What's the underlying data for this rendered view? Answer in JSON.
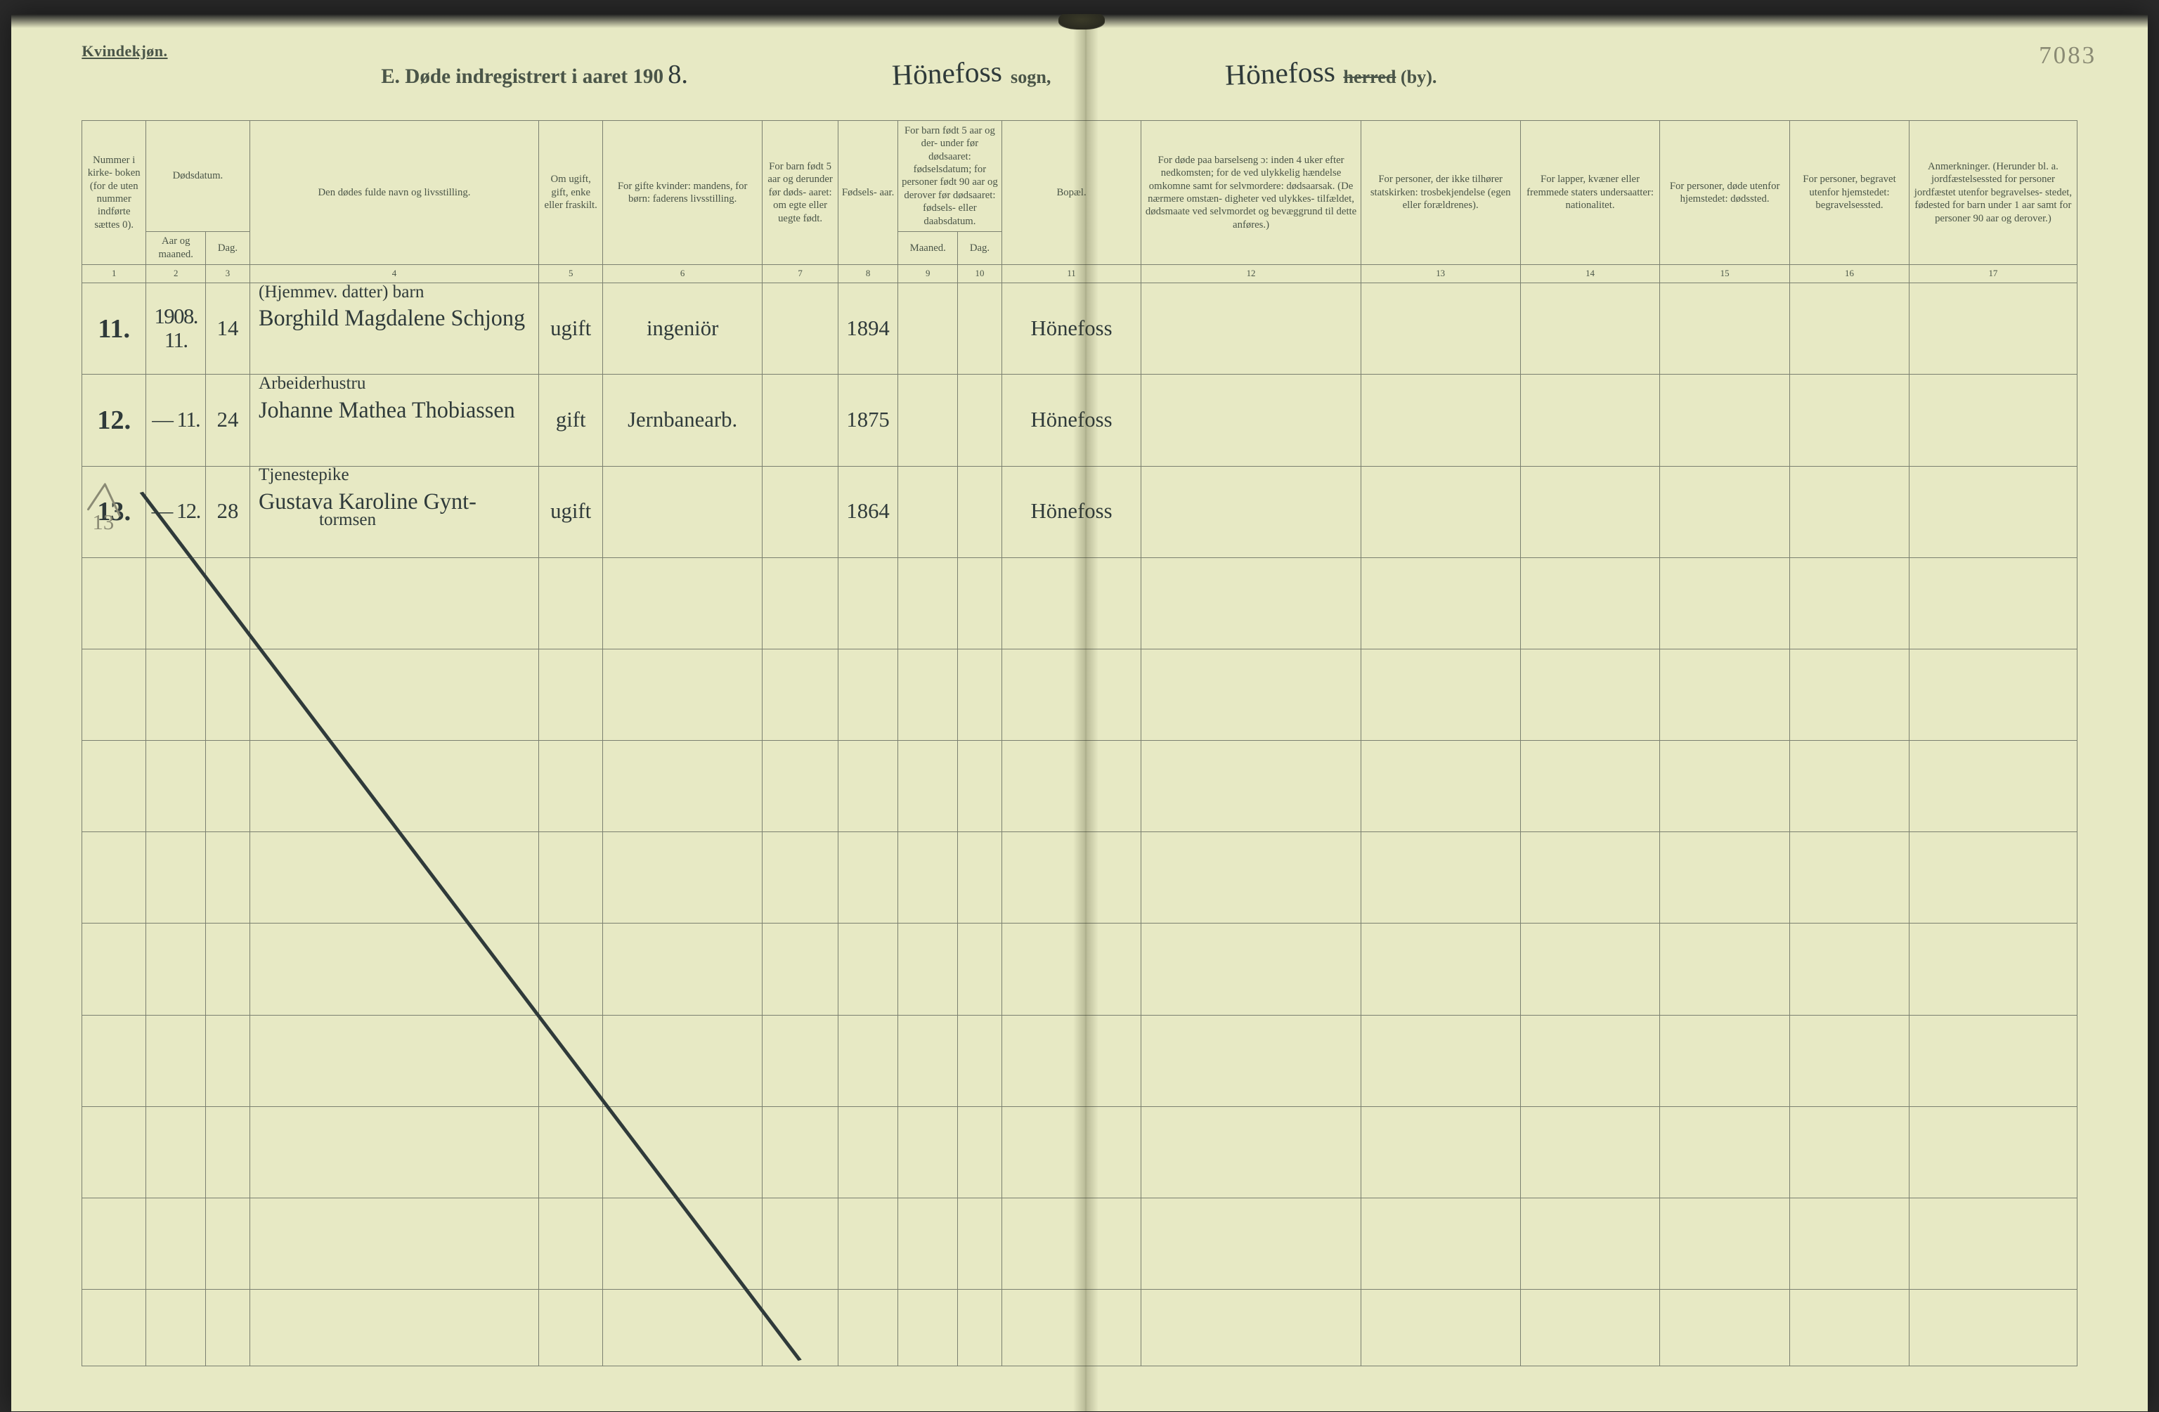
{
  "colors": {
    "paper": "#e7e9c4",
    "print": "#4a5548",
    "rule": "#7b8070",
    "ink": "#2f3a3a",
    "pencil": "#8a8a74"
  },
  "corner_label": "Kvindekjøn.",
  "page_number": "7083",
  "title": {
    "prefix": "E.  Døde indregistrert i aaret 190",
    "year_digit": "8.",
    "sogn_hand": "Hönefoss",
    "sogn_print": "sogn,",
    "herred_hand": "Hönefoss",
    "herred_strike": "herred",
    "herred_suffix": " (by)."
  },
  "headers": {
    "c1": "Nummer i kirke- boken (for de uten nummer indførte sættes 0).",
    "c2a": "Dødsdatum.",
    "c2b": "Aar og maaned.",
    "c3": "Dag.",
    "c4": "Den dødes fulde navn og livsstilling.",
    "c5": "Om ugift, gift, enke eller fraskilt.",
    "c6": "For gifte kvinder: mandens, for børn: faderens livsstilling.",
    "c7": "For barn født 5 aar og derunder før døds- aaret: om egte eller uegte født.",
    "c8": "Fødsels- aar.",
    "c9a": "For barn født 5 aar og der- under før dødsaaret: fødselsdatum; for personer født 90 aar og derover før dødsaaret: fødsels- eller daabsdatum.",
    "c9b": "Maaned.",
    "c10": "Dag.",
    "c11": "Bopæl.",
    "c12": "For døde paa barselseng ɔ: inden 4 uker efter nedkomsten; for de ved ulykkelig hændelse omkomne samt for selvmordere: dødsaarsak. (De nærmere omstæn- digheter ved ulykkes- tilfældet, dødsmaate ved selvmordet og bevæggrund til dette anføres.)",
    "c13": "For personer, der ikke tilhører statskirken: trosbekjendelse (egen eller forældrenes).",
    "c14": "For lapper, kvæner eller fremmede staters undersaatter: nationalitet.",
    "c15": "For personer, døde utenfor hjemstedet: dødssted.",
    "c16": "For personer, begravet utenfor hjemstedet: begravelsessted.",
    "c17": "Anmerkninger. (Herunder bl. a. jordfæstelsessted for personer jordfæstet utenfor begravelses- stedet, fødested for barn under 1 aar samt for personer 90 aar og derover.)"
  },
  "colnums": [
    "1",
    "2",
    "3",
    "4",
    "5",
    "6",
    "7",
    "8",
    "9",
    "10",
    "11",
    "12",
    "13",
    "14",
    "15",
    "16",
    "17"
  ],
  "colwidths_pct": [
    3.2,
    3.0,
    2.2,
    14.5,
    3.2,
    8.0,
    3.8,
    3.0,
    3.0,
    2.2,
    7.0,
    11.0,
    8.0,
    7.0,
    6.5,
    6.0,
    8.4
  ],
  "rows": [
    {
      "num": "11.",
      "aar_mnd": "1908. 11.",
      "dag": "14",
      "occ_above": "(Hjemmev. datter)  barn",
      "name": "Borghild Magdalene Schjong",
      "name_below": "",
      "status": "ugift",
      "far": "ingeniör",
      "fodselsaar": "1894",
      "bopael": "Hönefoss"
    },
    {
      "num": "12.",
      "aar_mnd": "— 11.",
      "dag": "24",
      "occ_above": "Arbeiderhustru",
      "name": "Johanne Mathea Thobiassen",
      "name_below": "",
      "status": "gift",
      "far": "Jernbanearb.",
      "fodselsaar": "1875",
      "bopael": "Hönefoss"
    },
    {
      "num": "13.",
      "aar_mnd": "— 12.",
      "dag": "28",
      "occ_above": "Tjenestepike",
      "name": "Gustava Karoline Gynt-",
      "name_below": "tormsen",
      "status": "ugift",
      "far": "",
      "fodselsaar": "1864",
      "bopael": "Hönefoss"
    }
  ],
  "pencil_margin_note": "13",
  "empty_row_count": 9,
  "diagonal": {
    "stroke": "#2f3a3a",
    "width": 2
  }
}
